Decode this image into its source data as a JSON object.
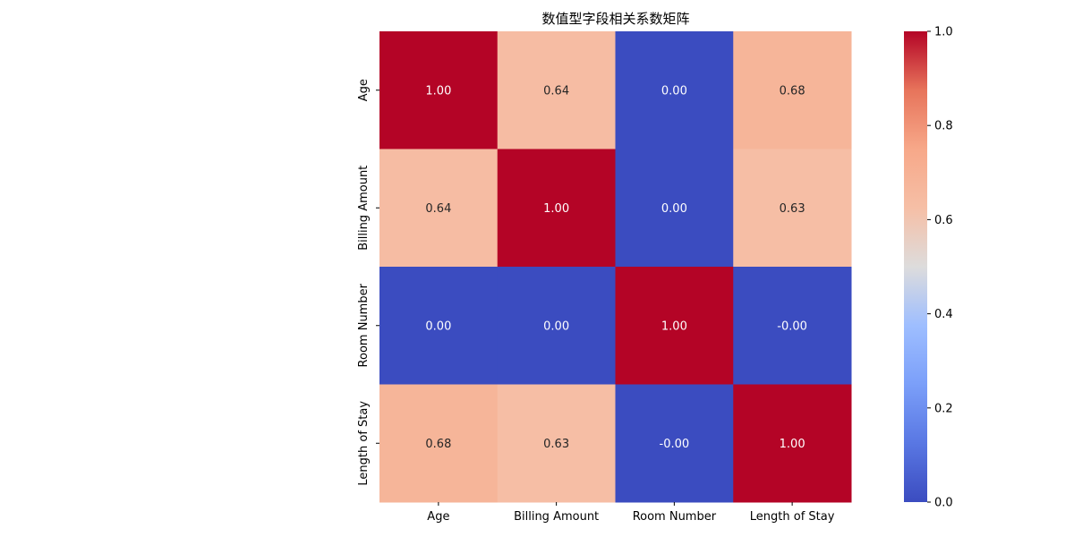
{
  "chart_data": {
    "type": "heatmap",
    "title": "数值型字段相关系数矩阵",
    "row_labels": [
      "Age",
      "Billing Amount",
      "Room Number",
      "Length of Stay"
    ],
    "col_labels": [
      "Age",
      "Billing Amount",
      "Room Number",
      "Length of Stay"
    ],
    "values": [
      [
        1.0,
        0.64,
        0.0,
        0.68
      ],
      [
        0.64,
        1.0,
        0.0,
        0.63
      ],
      [
        0.0,
        0.0,
        1.0,
        -0.0
      ],
      [
        0.68,
        0.63,
        -0.0,
        1.0
      ]
    ],
    "annotations": [
      [
        "1.00",
        "0.64",
        "0.00",
        "0.68"
      ],
      [
        "0.64",
        "1.00",
        "0.00",
        "0.63"
      ],
      [
        "0.00",
        "0.00",
        "1.00",
        "-0.00"
      ],
      [
        "0.68",
        "0.63",
        "-0.00",
        "1.00"
      ]
    ],
    "colormap": "coolwarm",
    "colorbar": {
      "range": [
        0.0,
        1.0
      ],
      "ticks": [
        0.0,
        0.2,
        0.4,
        0.6,
        0.8,
        1.0
      ],
      "tick_labels": [
        "0.0",
        "0.2",
        "0.4",
        "0.6",
        "0.8",
        "1.0"
      ]
    },
    "xlabel": "",
    "ylabel": ""
  }
}
